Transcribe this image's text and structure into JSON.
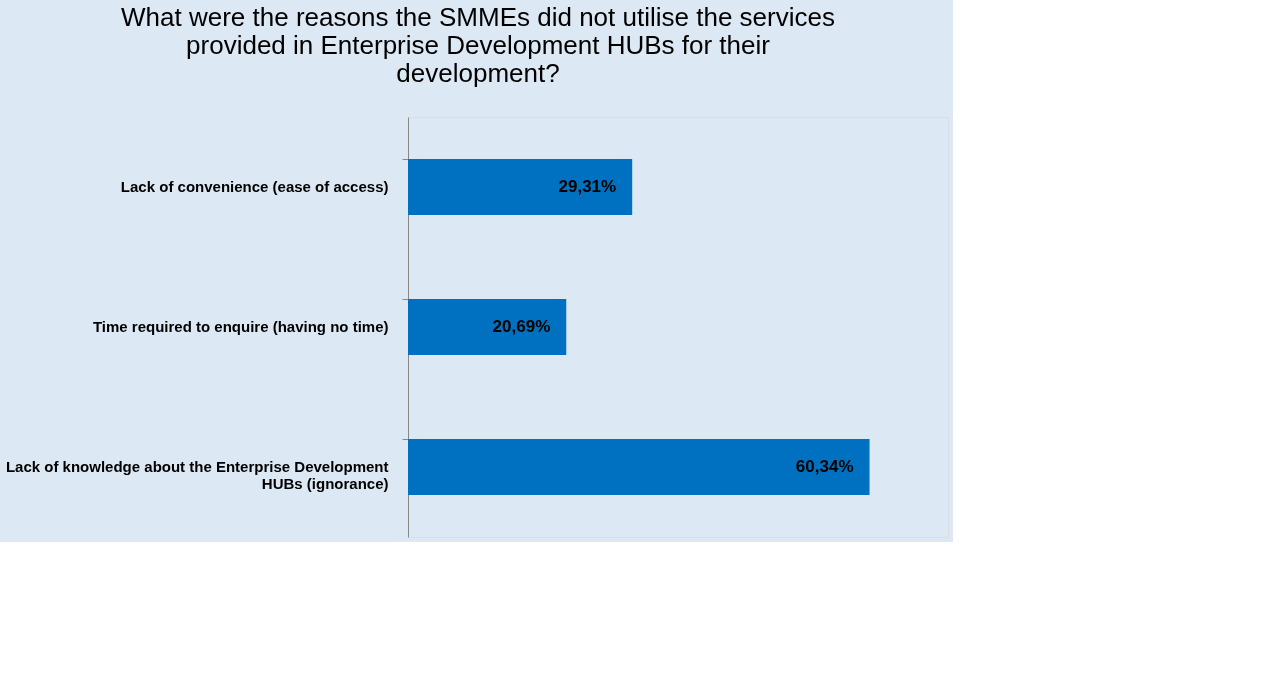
{
  "chart_data": {
    "type": "bar",
    "orientation": "horizontal",
    "title": "What were the reasons the SMMEs did not utilise the services provided in Enterprise Development HUBs for their development?",
    "categories": [
      "Lack of convenience (ease of access)",
      "Time required to enquire (having no time)",
      "Lack of knowledge about the Enterprise Development HUBs (ignorance)"
    ],
    "values": [
      29.31,
      20.69,
      60.34
    ],
    "value_labels": [
      "29,31%",
      "20,69%",
      "60,34%"
    ],
    "color": "#0070c0"
  }
}
